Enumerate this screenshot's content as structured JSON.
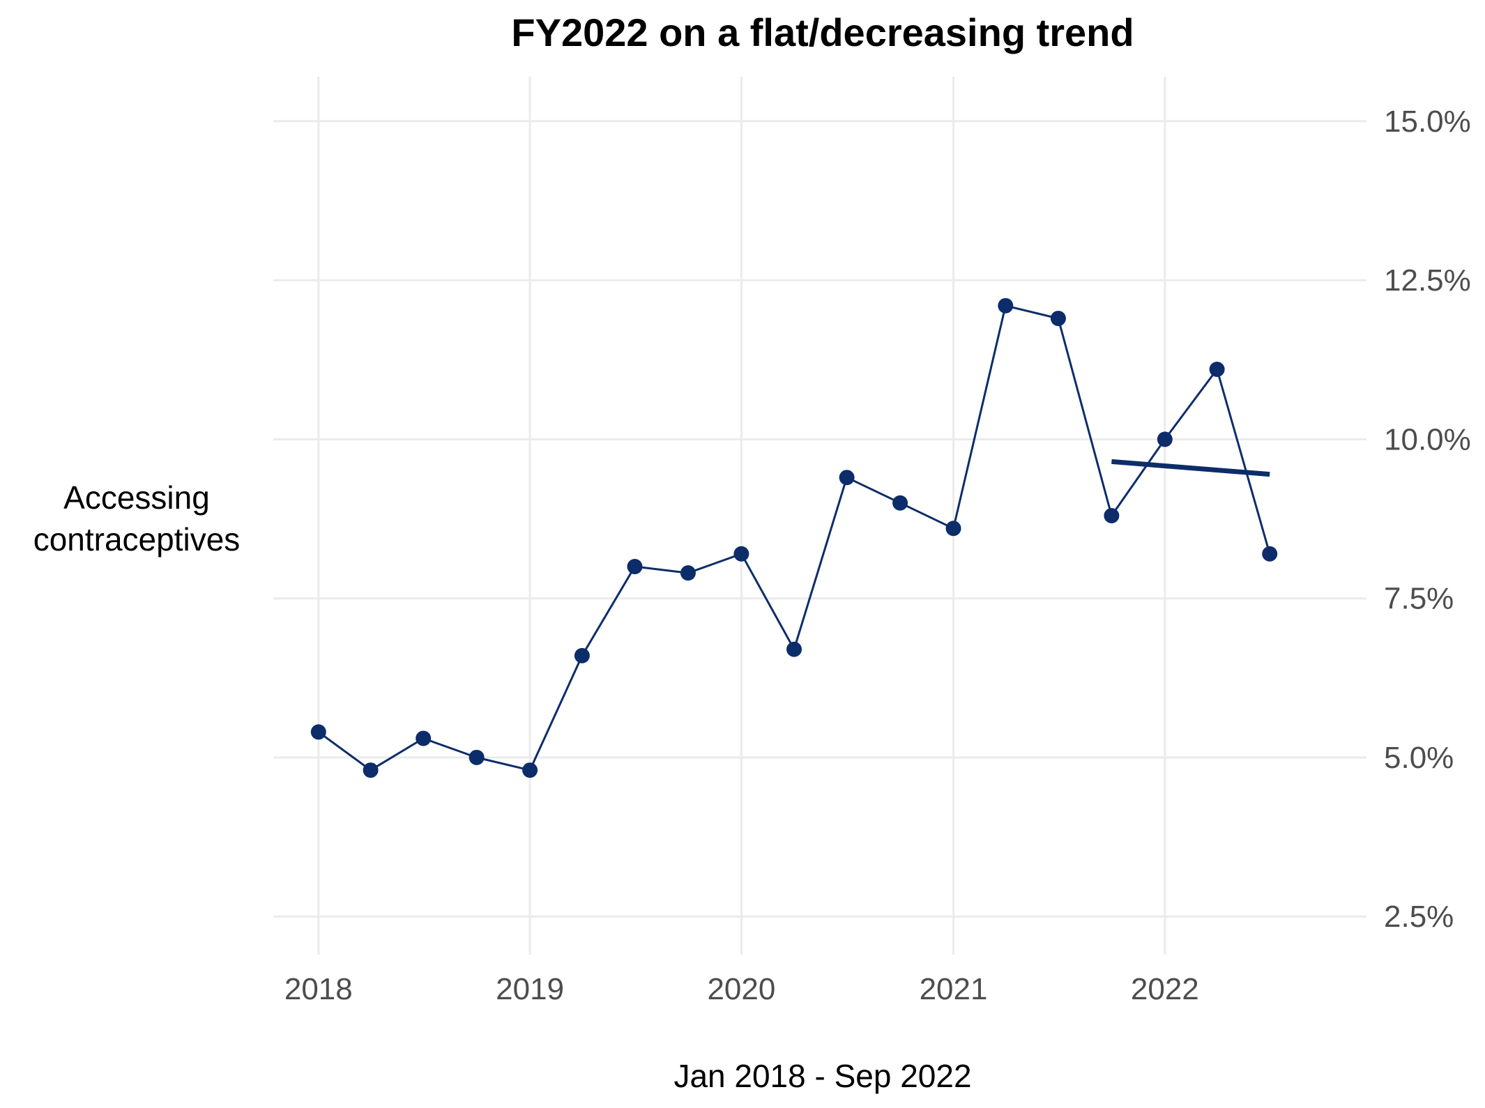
{
  "chart_data": {
    "type": "line",
    "title": "FY2022 on a flat/decreasing trend",
    "xlabel": "Jan 2018 - Sep 2022",
    "ylabel_lines": [
      "Accessing",
      "contraceptives"
    ],
    "y_axis_position": "right",
    "grid": true,
    "legend": "none",
    "xlim": [
      "2017-10-15",
      "2022-12-15"
    ],
    "ylim": [
      1.9,
      15.7
    ],
    "x_ticks": [
      "2018",
      "2019",
      "2020",
      "2021",
      "2022"
    ],
    "x_tick_dates": [
      "2018-01-01",
      "2019-01-01",
      "2020-01-01",
      "2021-01-01",
      "2022-01-01"
    ],
    "y_ticks": [
      2.5,
      5.0,
      7.5,
      10.0,
      12.5,
      15.0
    ],
    "y_tick_labels": [
      "2.5%",
      "5.0%",
      "7.5%",
      "10.0%",
      "12.5%",
      "15.0%"
    ],
    "series": [
      {
        "color": "#0c2d69",
        "x": [
          "2018-01-01",
          "2018-04-01",
          "2018-07-01",
          "2018-10-01",
          "2019-01-01",
          "2019-04-01",
          "2019-07-01",
          "2019-10-01",
          "2020-01-01",
          "2020-04-01",
          "2020-07-01",
          "2020-10-01",
          "2021-01-01",
          "2021-04-01",
          "2021-07-01",
          "2021-10-01",
          "2022-01-01",
          "2022-04-01",
          "2022-07-01"
        ],
        "y": [
          5.4,
          4.8,
          5.3,
          5.0,
          4.8,
          6.6,
          8.0,
          7.9,
          8.2,
          6.7,
          9.4,
          9.0,
          8.6,
          12.1,
          11.9,
          8.8,
          10.0,
          11.1,
          8.2
        ]
      }
    ],
    "trend_line": {
      "color": "#0c2d69",
      "x": [
        "2021-10-01",
        "2022-07-01"
      ],
      "y": [
        9.65,
        9.45
      ]
    }
  }
}
